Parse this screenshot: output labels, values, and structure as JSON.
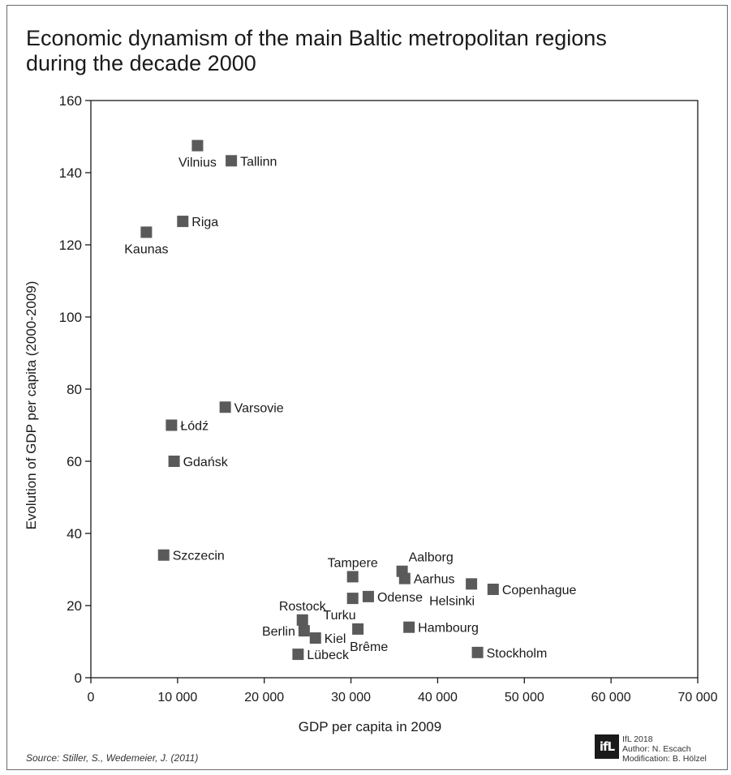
{
  "title_lines": [
    "Economic dynamism of the main Baltic metropolitan regions",
    "during the decade 2000"
  ],
  "source": "Source: Stiller, S., Wedemeier, J. (2011)",
  "credit": {
    "logo": "ifL",
    "lines": [
      "IfL 2018",
      "Author: N. Escach",
      "Modification: B. Hölzel"
    ]
  },
  "colors": {
    "marker": "#5a5a5a",
    "axis": "#1a1a1a",
    "text": "#1a1a1a"
  },
  "chart_data": {
    "type": "scatter",
    "xlabel": "GDP per capita in 2009",
    "ylabel": "Evolution of GDP per capita (2000-2009)",
    "xlim": [
      0,
      70000
    ],
    "ylim": [
      0,
      160
    ],
    "xticks": [
      0,
      10000,
      20000,
      30000,
      40000,
      50000,
      60000,
      70000
    ],
    "xtick_labels": [
      "0",
      "10 000",
      "20 000",
      "30 000",
      "40 000",
      "50 000",
      "60 000",
      "70 000"
    ],
    "yticks": [
      0,
      20,
      40,
      60,
      80,
      100,
      120,
      140,
      160
    ],
    "ytick_labels": [
      "0",
      "20",
      "40",
      "60",
      "80",
      "100",
      "120",
      "140",
      "160"
    ],
    "grid": false,
    "points": [
      {
        "label": "Vilnius",
        "x": 12300,
        "y": 147.5,
        "label_pos": "below"
      },
      {
        "label": "Tallinn",
        "x": 16200,
        "y": 143.3,
        "label_pos": "right"
      },
      {
        "label": "Riga",
        "x": 10600,
        "y": 126.5,
        "label_pos": "right"
      },
      {
        "label": "Kaunas",
        "x": 6400,
        "y": 123.5,
        "label_pos": "below"
      },
      {
        "label": "Varsovie",
        "x": 15500,
        "y": 75,
        "label_pos": "right"
      },
      {
        "label": "Łódź",
        "x": 9300,
        "y": 70,
        "label_pos": "right"
      },
      {
        "label": "Gdańsk",
        "x": 9600,
        "y": 60,
        "label_pos": "right"
      },
      {
        "label": "Szczecin",
        "x": 8400,
        "y": 34,
        "label_pos": "right"
      },
      {
        "label": "Tampere",
        "x": 30200,
        "y": 28,
        "label_pos": "above"
      },
      {
        "label": "Aalborg",
        "x": 35900,
        "y": 29.5,
        "label_pos": "above-right"
      },
      {
        "label": "Aarhus",
        "x": 36200,
        "y": 27.5,
        "label_pos": "right"
      },
      {
        "label": "Helsinki",
        "x": 43900,
        "y": 26,
        "label_pos": "below-left"
      },
      {
        "label": "Copenhague",
        "x": 46400,
        "y": 24.5,
        "label_pos": "right"
      },
      {
        "label": "Turku",
        "x": 30200,
        "y": 22,
        "label_pos": "below-left"
      },
      {
        "label": "Odense",
        "x": 32000,
        "y": 22.5,
        "label_pos": "right"
      },
      {
        "label": "Rostock",
        "x": 24400,
        "y": 16,
        "label_pos": "above"
      },
      {
        "label": "Berlin",
        "x": 24600,
        "y": 13,
        "label_pos": "left"
      },
      {
        "label": "Kiel",
        "x": 25900,
        "y": 11,
        "label_pos": "right"
      },
      {
        "label": "Brême",
        "x": 30800,
        "y": 13.5,
        "label_pos": "below-right"
      },
      {
        "label": "Hambourg",
        "x": 36700,
        "y": 14,
        "label_pos": "right"
      },
      {
        "label": "Lübeck",
        "x": 23900,
        "y": 6.5,
        "label_pos": "right"
      },
      {
        "label": "Stockholm",
        "x": 44600,
        "y": 7,
        "label_pos": "right"
      }
    ]
  }
}
